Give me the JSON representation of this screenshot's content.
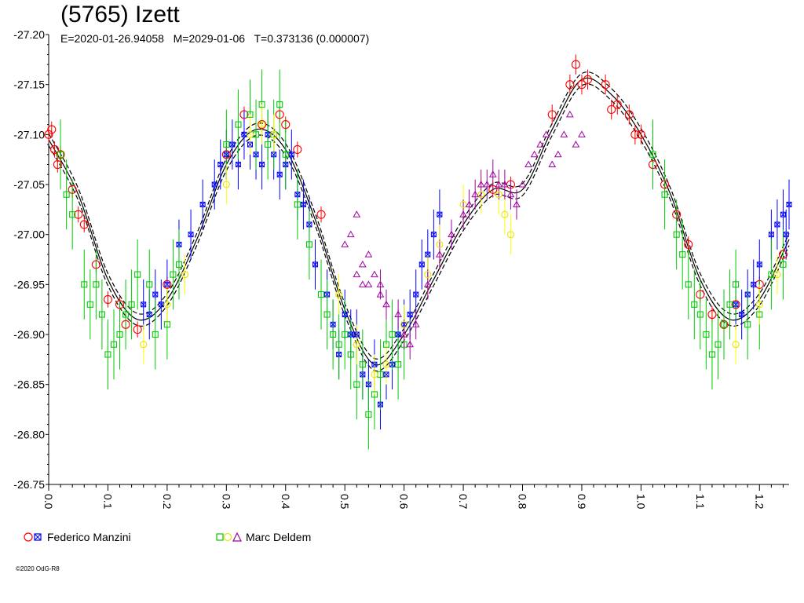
{
  "title": "(5765) Izett",
  "subtitle": {
    "epoch": "E=2020-01-26.94058",
    "model": "M=2029-01-06",
    "period": "T=0.373136 (0.000007)"
  },
  "legend": [
    {
      "label": "Federico Manzini",
      "markers": [
        "circle",
        "xsquare"
      ],
      "colors": [
        "#ff0000",
        "#0000ff"
      ]
    },
    {
      "label": "Marc Deldem",
      "markers": [
        "square",
        "circle",
        "triangle"
      ],
      "colors": [
        "#00cc00",
        "#ffff00",
        "#a000a0"
      ]
    }
  ],
  "copyright": "©2020 OdG-R8",
  "chart_data": {
    "type": "scatter",
    "title": "(5765) Izett",
    "xlim": [
      0.0,
      1.25
    ],
    "ylim": [
      -27.2,
      -26.75
    ],
    "y_inverted": true,
    "xticks": [
      "0.0",
      "0.1",
      "0.2",
      "0.3",
      "0.4",
      "0.5",
      "0.6",
      "0.7",
      "0.8",
      "0.9",
      "1.0",
      "1.1",
      "1.2"
    ],
    "yticks": [
      "-27.20",
      "-27.15",
      "-27.10",
      "-27.05",
      "-27.00",
      "-26.95",
      "-26.90",
      "-26.85",
      "-26.80",
      "-26.75"
    ],
    "fit_curve": {
      "phase": [
        0.0,
        0.05,
        0.1,
        0.15,
        0.2,
        0.25,
        0.3,
        0.35,
        0.4,
        0.45,
        0.5,
        0.55,
        0.6,
        0.65,
        0.7,
        0.75,
        0.8,
        0.85,
        0.9,
        0.95,
        1.0,
        1.05,
        1.1,
        1.15,
        1.2,
        1.25
      ],
      "mag": [
        -27.095,
        -27.04,
        -26.955,
        -26.915,
        -26.935,
        -26.995,
        -27.07,
        -27.105,
        -27.085,
        -27.015,
        -26.925,
        -26.87,
        -26.9,
        -26.955,
        -27.01,
        -27.045,
        -27.045,
        -27.105,
        -27.155,
        -27.14,
        -27.1,
        -27.04,
        -26.955,
        -26.915,
        -26.935,
        -26.995
      ],
      "envelope": 0.006
    },
    "series": [
      {
        "name": "Federico Manzini",
        "marker": "circle",
        "color": "#ff0000",
        "x": [
          0.0,
          0.005,
          0.01,
          0.015,
          0.02,
          0.04,
          0.05,
          0.06,
          0.08,
          0.1,
          0.12,
          0.13,
          0.15,
          0.2,
          0.3,
          0.33,
          0.36,
          0.39,
          0.4,
          0.42,
          0.46,
          0.75,
          0.78,
          0.85,
          0.88,
          0.89,
          0.9,
          0.91,
          0.94,
          0.95,
          0.96,
          0.98,
          0.99,
          1.0,
          1.02,
          1.04,
          1.06,
          1.08,
          1.1,
          1.12,
          1.14,
          1.16,
          1.2,
          1.24
        ],
        "y": [
          -27.1,
          -27.105,
          -27.085,
          -27.07,
          -27.08,
          -27.045,
          -27.02,
          -27.01,
          -26.97,
          -26.935,
          -26.93,
          -26.91,
          -26.905,
          -26.95,
          -27.08,
          -27.12,
          -27.11,
          -27.12,
          -27.11,
          -27.085,
          -27.02,
          -27.045,
          -27.05,
          -27.12,
          -27.15,
          -27.17,
          -27.15,
          -27.155,
          -27.15,
          -27.125,
          -27.13,
          -27.12,
          -27.1,
          -27.1,
          -27.07,
          -27.05,
          -27.02,
          -26.99,
          -26.94,
          -26.92,
          -26.91,
          -26.93,
          -26.95,
          -26.98
        ],
        "err": [
          0.008,
          0.008,
          0.008,
          0.008,
          0.008,
          0.008,
          0.008,
          0.008,
          0.008,
          0.008,
          0.008,
          0.008,
          0.008,
          0.008,
          0.008,
          0.008,
          0.008,
          0.008,
          0.008,
          0.008,
          0.008,
          0.008,
          0.008,
          0.01,
          0.01,
          0.01,
          0.01,
          0.01,
          0.01,
          0.01,
          0.01,
          0.01,
          0.01,
          0.01,
          0.008,
          0.008,
          0.008,
          0.008,
          0.008,
          0.008,
          0.008,
          0.008,
          0.008,
          0.008
        ]
      },
      {
        "name": "Federico Manzini",
        "marker": "xsquare",
        "color": "#0000ff",
        "x": [
          0.16,
          0.17,
          0.18,
          0.19,
          0.2,
          0.22,
          0.24,
          0.26,
          0.28,
          0.29,
          0.3,
          0.31,
          0.32,
          0.33,
          0.34,
          0.35,
          0.36,
          0.37,
          0.38,
          0.39,
          0.4,
          0.41,
          0.42,
          0.43,
          0.44,
          0.45,
          0.47,
          0.48,
          0.49,
          0.5,
          0.51,
          0.52,
          0.53,
          0.54,
          0.55,
          0.56,
          0.57,
          0.58,
          0.59,
          0.6,
          0.61,
          0.62,
          0.63,
          0.64,
          0.65,
          0.66,
          1.16,
          1.17,
          1.18,
          1.19,
          1.2,
          1.22,
          1.23,
          1.24,
          1.245,
          1.25
        ],
        "y": [
          -26.93,
          -26.92,
          -26.94,
          -26.93,
          -26.95,
          -26.99,
          -27.0,
          -27.03,
          -27.05,
          -27.07,
          -27.08,
          -27.09,
          -27.07,
          -27.1,
          -27.09,
          -27.08,
          -27.07,
          -27.1,
          -27.08,
          -27.06,
          -27.07,
          -27.08,
          -27.04,
          -27.03,
          -27.01,
          -26.97,
          -26.94,
          -26.91,
          -26.88,
          -26.92,
          -26.9,
          -26.9,
          -26.86,
          -26.85,
          -26.87,
          -26.83,
          -26.86,
          -26.87,
          -26.9,
          -26.91,
          -26.92,
          -26.94,
          -26.97,
          -26.98,
          -27.0,
          -27.02,
          -26.93,
          -26.92,
          -26.94,
          -26.95,
          -26.97,
          -27.0,
          -27.01,
          -27.02,
          -27.0,
          -27.03
        ],
        "err": [
          0.025,
          0.025,
          0.025,
          0.025,
          0.025,
          0.025,
          0.025,
          0.025,
          0.025,
          0.025,
          0.025,
          0.025,
          0.025,
          0.025,
          0.025,
          0.025,
          0.025,
          0.025,
          0.025,
          0.025,
          0.025,
          0.025,
          0.025,
          0.025,
          0.025,
          0.025,
          0.025,
          0.025,
          0.025,
          0.025,
          0.025,
          0.025,
          0.025,
          0.025,
          0.025,
          0.025,
          0.025,
          0.025,
          0.025,
          0.025,
          0.025,
          0.025,
          0.025,
          0.025,
          0.025,
          0.025,
          0.025,
          0.025,
          0.025,
          0.025,
          0.025,
          0.025,
          0.025,
          0.025,
          0.025,
          0.025
        ]
      },
      {
        "name": "Marc Deldem",
        "marker": "square",
        "color": "#00cc00",
        "x": [
          0.02,
          0.03,
          0.04,
          0.06,
          0.07,
          0.08,
          0.09,
          0.1,
          0.11,
          0.12,
          0.13,
          0.14,
          0.15,
          0.17,
          0.18,
          0.2,
          0.21,
          0.22,
          0.3,
          0.32,
          0.34,
          0.35,
          0.36,
          0.37,
          0.38,
          0.39,
          0.4,
          0.42,
          0.44,
          0.46,
          0.47,
          0.48,
          0.49,
          0.5,
          0.51,
          0.52,
          0.53,
          0.54,
          0.55,
          0.56,
          0.57,
          0.58,
          0.59,
          0.6,
          1.02,
          1.04,
          1.06,
          1.07,
          1.08,
          1.09,
          1.1,
          1.11,
          1.12,
          1.13,
          1.14,
          1.15,
          1.16,
          1.18,
          1.2,
          1.22,
          1.24
        ],
        "y": [
          -27.08,
          -27.04,
          -27.02,
          -26.95,
          -26.93,
          -26.95,
          -26.92,
          -26.88,
          -26.89,
          -26.9,
          -26.92,
          -26.93,
          -26.96,
          -26.95,
          -26.9,
          -26.91,
          -26.96,
          -26.97,
          -27.09,
          -27.11,
          -27.12,
          -27.1,
          -27.13,
          -27.09,
          -27.1,
          -27.13,
          -27.08,
          -27.03,
          -26.99,
          -26.94,
          -26.92,
          -26.9,
          -26.89,
          -26.9,
          -26.88,
          -26.85,
          -26.87,
          -26.82,
          -26.84,
          -26.86,
          -26.89,
          -26.9,
          -26.87,
          -26.89,
          -27.08,
          -27.04,
          -27.0,
          -26.98,
          -26.95,
          -26.93,
          -26.92,
          -26.9,
          -26.88,
          -26.89,
          -26.91,
          -26.93,
          -26.95,
          -26.91,
          -26.92,
          -26.96,
          -26.97
        ],
        "err": [
          0.035,
          0.035,
          0.035,
          0.035,
          0.035,
          0.035,
          0.035,
          0.035,
          0.035,
          0.035,
          0.035,
          0.035,
          0.035,
          0.035,
          0.035,
          0.035,
          0.035,
          0.035,
          0.035,
          0.035,
          0.035,
          0.035,
          0.035,
          0.035,
          0.035,
          0.035,
          0.035,
          0.035,
          0.035,
          0.035,
          0.035,
          0.035,
          0.035,
          0.035,
          0.035,
          0.035,
          0.035,
          0.035,
          0.035,
          0.035,
          0.035,
          0.035,
          0.035,
          0.035,
          0.035,
          0.035,
          0.035,
          0.035,
          0.035,
          0.035,
          0.035,
          0.035,
          0.035,
          0.035,
          0.035,
          0.035,
          0.035,
          0.035,
          0.035,
          0.035,
          0.035
        ]
      },
      {
        "name": "Marc Deldem",
        "marker": "circle",
        "color": "#ffff00",
        "x": [
          0.16,
          0.2,
          0.23,
          0.3,
          0.34,
          0.36,
          0.38,
          0.49,
          0.52,
          0.55,
          0.57,
          0.6,
          0.64,
          0.66,
          0.7,
          0.73,
          0.76,
          0.77,
          0.78,
          1.16,
          1.2,
          1.23
        ],
        "y": [
          -26.89,
          -26.93,
          -26.96,
          -27.05,
          -27.1,
          -27.11,
          -27.1,
          -26.94,
          -26.89,
          -26.86,
          -26.87,
          -26.91,
          -26.96,
          -26.99,
          -27.03,
          -27.04,
          -27.04,
          -27.02,
          -27.0,
          -26.89,
          -26.93,
          -26.96
        ],
        "err": [
          0.02,
          0.02,
          0.02,
          0.02,
          0.02,
          0.02,
          0.02,
          0.02,
          0.02,
          0.02,
          0.02,
          0.02,
          0.02,
          0.02,
          0.02,
          0.02,
          0.02,
          0.02,
          0.02,
          0.02,
          0.02,
          0.02
        ]
      },
      {
        "name": "Marc Deldem",
        "marker": "triangle",
        "color": "#a000a0",
        "x": [
          0.5,
          0.51,
          0.52,
          0.53,
          0.54,
          0.56,
          0.57,
          0.59,
          0.6,
          0.61,
          0.62,
          0.64,
          0.66,
          0.68,
          0.7,
          0.71,
          0.72,
          0.73,
          0.74,
          0.75,
          0.76,
          0.77,
          0.78,
          0.79,
          0.8,
          0.81,
          0.82,
          0.83,
          0.84,
          0.85,
          0.86,
          0.87,
          0.88,
          0.89,
          0.9,
          0.52,
          0.53,
          0.54,
          0.55,
          0.56
        ],
        "y": [
          -26.99,
          -27.0,
          -27.02,
          -26.97,
          -26.95,
          -26.95,
          -26.93,
          -26.92,
          -26.9,
          -26.89,
          -26.91,
          -26.95,
          -26.98,
          -27.0,
          -27.02,
          -27.03,
          -27.04,
          -27.05,
          -27.05,
          -27.06,
          -27.05,
          -27.05,
          -27.04,
          -27.03,
          -27.05,
          -27.07,
          -27.08,
          -27.09,
          -27.1,
          -27.07,
          -27.08,
          -27.1,
          -27.12,
          -27.09,
          -27.1,
          -26.96,
          -26.95,
          -26.98,
          -26.96,
          -26.94
        ],
        "err": [
          0.0,
          0.0,
          0.0,
          0.0,
          0.0,
          0.015,
          0.015,
          0.015,
          0.015,
          0.015,
          0.015,
          0.015,
          0.015,
          0.015,
          0.015,
          0.015,
          0.015,
          0.015,
          0.015,
          0.015,
          0.015,
          0.015,
          0.015,
          0.015,
          0.0,
          0.0,
          0.0,
          0.0,
          0.0,
          0.0,
          0.0,
          0.0,
          0.0,
          0.0,
          0.0,
          0.0,
          0.0,
          0.0,
          0.0,
          0.0
        ]
      }
    ]
  }
}
